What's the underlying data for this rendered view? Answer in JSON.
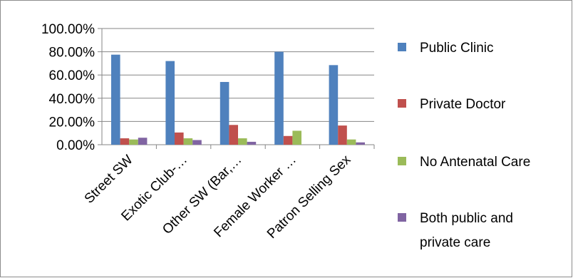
{
  "chart_data": {
    "type": "bar",
    "title": "",
    "xlabel": "",
    "ylabel": "",
    "ylim": [
      0,
      1
    ],
    "y_ticks": [
      "0.00%",
      "20.00%",
      "40.00%",
      "60.00%",
      "80.00%",
      "100.00%"
    ],
    "y_tick_values": [
      0,
      0.2,
      0.4,
      0.6,
      0.8,
      1.0
    ],
    "categories": [
      "Street SW",
      "Exotic Club-…",
      "Other SW (Bar,…",
      "Female Worker …",
      "Patron Selling Sex"
    ],
    "series": [
      {
        "name": "Public Clinic",
        "color": "#4f81bd",
        "values": [
          0.775,
          0.72,
          0.54,
          0.8,
          0.685
        ]
      },
      {
        "name": "Private Doctor",
        "color": "#c0504d",
        "values": [
          0.055,
          0.105,
          0.17,
          0.075,
          0.165
        ]
      },
      {
        "name": "No Antenatal Care",
        "color": "#9bbb59",
        "values": [
          0.045,
          0.055,
          0.055,
          0.12,
          0.045
        ]
      },
      {
        "name": "Both public and private care",
        "color": "#8064a2",
        "values": [
          0.06,
          0.04,
          0.025,
          0.0,
          0.02
        ]
      }
    ],
    "legend_position": "right",
    "gridlines": true
  }
}
